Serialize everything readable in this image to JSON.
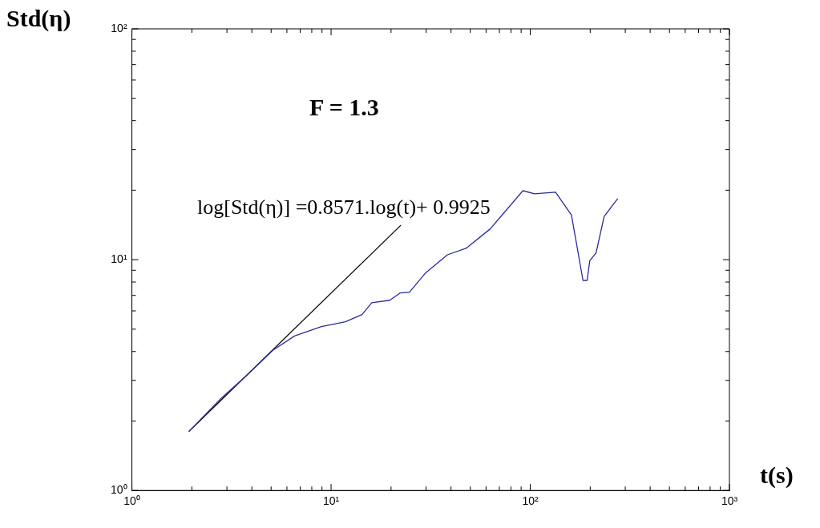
{
  "chart_data": {
    "type": "line",
    "xlabel": "t(s)",
    "ylabel": "Std(η)",
    "annotations": [
      "F = 1.3",
      "log[Std(η)] =0.8571.log(t)+ 0.9925"
    ],
    "log": "xy",
    "grid": false,
    "legend": false,
    "marker": "none",
    "line_style": "solid",
    "xlim": [
      1,
      1000
    ],
    "ylim": [
      1,
      100
    ],
    "xticks": [
      {
        "value": 1,
        "label": "10⁰"
      },
      {
        "value": 2,
        "label": null
      },
      {
        "value": 3,
        "label": null
      },
      {
        "value": 4,
        "label": null
      },
      {
        "value": 5,
        "label": null
      },
      {
        "value": 6,
        "label": null
      },
      {
        "value": 7,
        "label": null
      },
      {
        "value": 8,
        "label": null
      },
      {
        "value": 9,
        "label": null
      },
      {
        "value": 10,
        "label": "10¹"
      },
      {
        "value": 20,
        "label": null
      },
      {
        "value": 30,
        "label": null
      },
      {
        "value": 40,
        "label": null
      },
      {
        "value": 50,
        "label": null
      },
      {
        "value": 60,
        "label": null
      },
      {
        "value": 70,
        "label": null
      },
      {
        "value": 80,
        "label": null
      },
      {
        "value": 90,
        "label": null
      },
      {
        "value": 100,
        "label": "10²"
      },
      {
        "value": 200,
        "label": null
      },
      {
        "value": 300,
        "label": null
      },
      {
        "value": 400,
        "label": null
      },
      {
        "value": 500,
        "label": null
      },
      {
        "value": 600,
        "label": null
      },
      {
        "value": 700,
        "label": null
      },
      {
        "value": 800,
        "label": null
      },
      {
        "value": 900,
        "label": null
      },
      {
        "value": 1000,
        "label": "10³"
      }
    ],
    "yticks": [
      {
        "value": 1,
        "label": "10⁰"
      },
      {
        "value": 2,
        "label": null
      },
      {
        "value": 3,
        "label": null
      },
      {
        "value": 4,
        "label": null
      },
      {
        "value": 5,
        "label": null
      },
      {
        "value": 6,
        "label": null
      },
      {
        "value": 7,
        "label": null
      },
      {
        "value": 8,
        "label": null
      },
      {
        "value": 9,
        "label": null
      },
      {
        "value": 10,
        "label": "10¹"
      },
      {
        "value": 20,
        "label": null
      },
      {
        "value": 30,
        "label": null
      },
      {
        "value": 40,
        "label": null
      },
      {
        "value": 50,
        "label": null
      },
      {
        "value": 60,
        "label": null
      },
      {
        "value": 70,
        "label": null
      },
      {
        "value": 80,
        "label": null
      },
      {
        "value": 90,
        "label": null
      },
      {
        "value": 100,
        "label": "10²"
      }
    ],
    "series": [
      {
        "color": "#2a2aa0",
        "x": [
          1.93,
          2.81,
          3.83,
          5.08,
          6.55,
          8.93,
          11.8,
          14.3,
          16.0,
          19.7,
          22.2,
          24.7,
          29.7,
          38.4,
          47.6,
          63,
          74,
          91.9,
          105,
          134,
          161,
          184,
          193,
          199,
          214,
          235,
          275
        ],
        "values": [
          1.8,
          2.51,
          3.19,
          4.04,
          4.67,
          5.13,
          5.38,
          5.78,
          6.51,
          6.67,
          7.17,
          7.22,
          8.73,
          10.5,
          11.2,
          13.6,
          16.0,
          19.9,
          19.3,
          19.6,
          15.6,
          8.13,
          8.13,
          9.9,
          10.7,
          15.4,
          18.4
        ]
      },
      {
        "color": "#000000",
        "x": [
          1.93,
          22.4
        ],
        "values": [
          1.8,
          14.1
        ]
      }
    ]
  }
}
